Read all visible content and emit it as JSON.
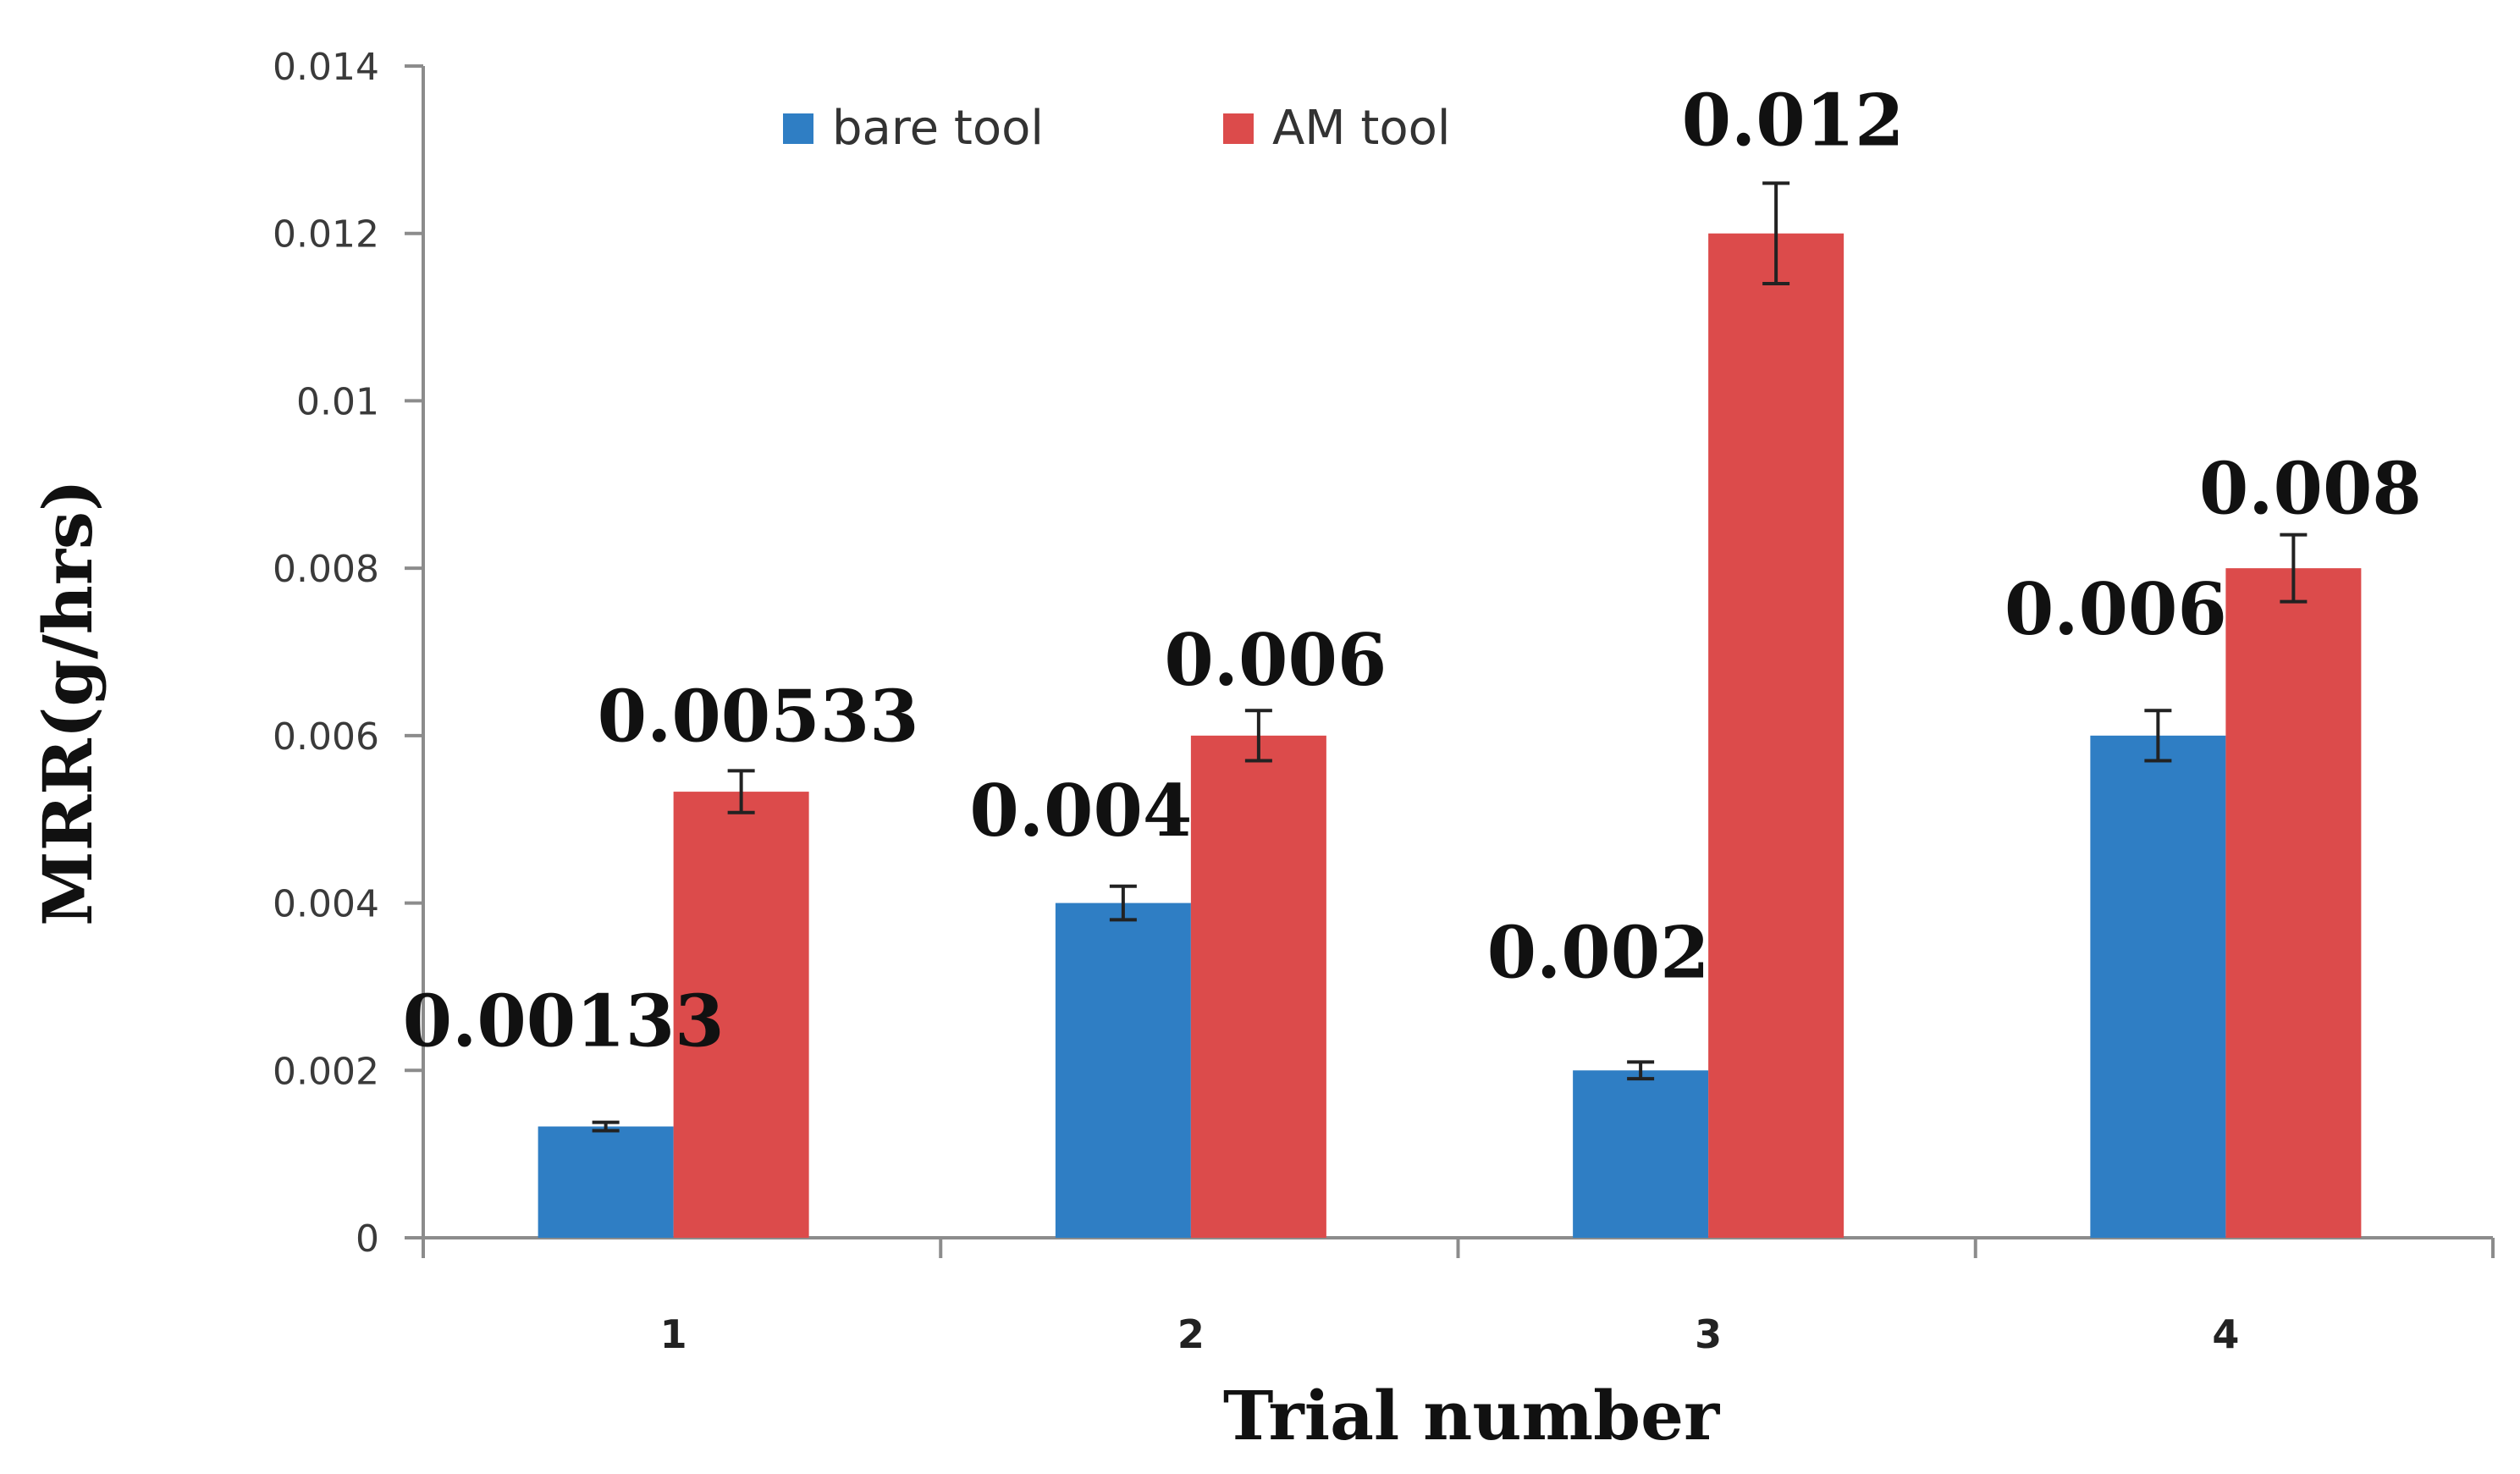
{
  "chart_data": {
    "type": "bar",
    "title": "",
    "xlabel": "Trial number",
    "ylabel": "MRR(g/hrs)",
    "categories": [
      "1",
      "2",
      "3",
      "4"
    ],
    "ylim": [
      0,
      0.014
    ],
    "yticks": [
      0,
      0.002,
      0.004,
      0.006,
      0.008,
      0.01,
      0.012,
      0.014
    ],
    "ytick_labels": [
      "0",
      "0.002",
      "0.004",
      "0.006",
      "0.008",
      "0.01",
      "0.012",
      "0.014"
    ],
    "legend_position": "top-center",
    "grid": false,
    "series": [
      {
        "name": "bare tool",
        "color": "#2f7ec4",
        "values": [
          0.00133,
          0.004,
          0.002,
          0.006
        ],
        "error": [
          5e-05,
          0.0002,
          0.0001,
          0.0003
        ],
        "labels": [
          "0.00133",
          "0.004",
          "0.002",
          "0.006"
        ]
      },
      {
        "name": "AM tool",
        "color": "#dc4b4b",
        "values": [
          0.00533,
          0.006,
          0.012,
          0.008
        ],
        "error": [
          0.00025,
          0.0003,
          0.0006,
          0.0004
        ],
        "labels": [
          "0.00533",
          "0.006",
          "0.012",
          "0.008"
        ]
      }
    ]
  }
}
